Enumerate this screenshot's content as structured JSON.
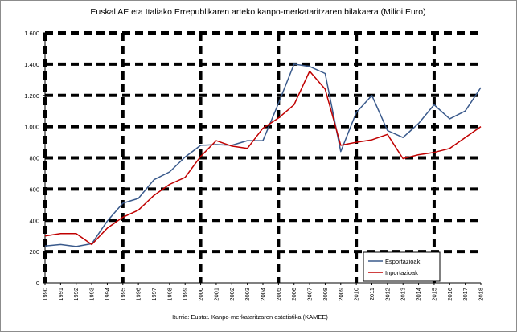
{
  "chart_data": {
    "type": "line",
    "title": "Euskal AE eta Italiako Errepublikaren arteko kanpo-merkataritzaren bilakaera (Milioi Euro)",
    "source": "Iturria: Eustat. Kanpo-merkataritzaren estatistika (KAMEE)",
    "xlabel": "",
    "ylabel": "",
    "x": [
      1990,
      1991,
      1992,
      1993,
      1994,
      1995,
      1996,
      1997,
      1998,
      1999,
      2000,
      2001,
      2002,
      2003,
      2004,
      2005,
      2006,
      2007,
      2008,
      2009,
      2010,
      2011,
      2012,
      2013,
      2014,
      2015,
      2016,
      2017,
      2018
    ],
    "xlim": [
      1990,
      2018
    ],
    "ylim": [
      0,
      1600
    ],
    "y_ticks": [
      0,
      200,
      400,
      600,
      800,
      1000,
      1200,
      1400,
      1600
    ],
    "y_tick_labels": [
      "0",
      "200",
      "400",
      "600",
      "800",
      "1.000",
      "1.200",
      "1.400",
      "1.600"
    ],
    "x_tick_labels": [
      "1990",
      "1991",
      "1992",
      "1993",
      "1994",
      "1995",
      "1996",
      "1997",
      "1998",
      "1999",
      "2000",
      "2001",
      "2002",
      "2003",
      "2004",
      "2005",
      "2006",
      "2007",
      "2008",
      "2009",
      "2010",
      "2011",
      "2012",
      "2013",
      "2014",
      "2015",
      "2016",
      "2017",
      "2018"
    ],
    "grid": "dashed horizontal and vertical",
    "v_grid_years": [
      1990,
      1995,
      2000,
      2005,
      2010,
      2015
    ],
    "legend_position": "bottom-right",
    "series": [
      {
        "name": "Esportazioak",
        "color": "#3a5a8c",
        "values": [
          235,
          245,
          232,
          250,
          395,
          510,
          540,
          660,
          710,
          805,
          880,
          885,
          880,
          910,
          910,
          1150,
          1400,
          1385,
          1340,
          840,
          1090,
          1200,
          975,
          930,
          1020,
          1140,
          1050,
          1100,
          1250
        ]
      },
      {
        "name": "Inportazioak",
        "color": "#c00000",
        "values": [
          300,
          315,
          315,
          245,
          350,
          420,
          465,
          560,
          630,
          675,
          810,
          910,
          875,
          860,
          990,
          1055,
          1140,
          1355,
          1240,
          880,
          900,
          915,
          950,
          795,
          820,
          835,
          860,
          930,
          1000
        ]
      }
    ]
  }
}
